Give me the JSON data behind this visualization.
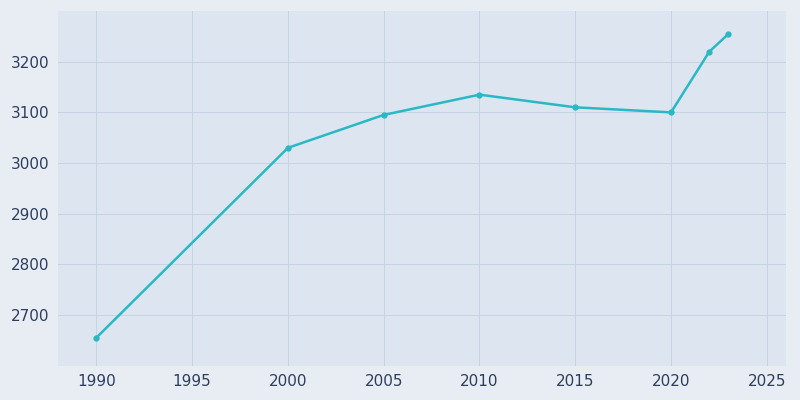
{
  "years": [
    1990,
    2000,
    2005,
    2010,
    2015,
    2020,
    2022,
    2023
  ],
  "population": [
    2655,
    3030,
    3095,
    3135,
    3110,
    3100,
    3220,
    3255
  ],
  "line_color": "#29b8c4",
  "marker": "o",
  "marker_size": 3.5,
  "line_width": 1.8,
  "fig_bg_color": "#e8edf4",
  "plot_bg_color": "#dde6f0",
  "xlim": [
    1988,
    2026
  ],
  "ylim": [
    2600,
    3300
  ],
  "xticks": [
    1990,
    1995,
    2000,
    2005,
    2010,
    2015,
    2020,
    2025
  ],
  "yticks": [
    2700,
    2800,
    2900,
    3000,
    3100,
    3200
  ],
  "grid_color": "#c5d3e2",
  "grid_linewidth": 0.7,
  "tick_label_color": "#2d3e5f",
  "tick_label_size": 11
}
